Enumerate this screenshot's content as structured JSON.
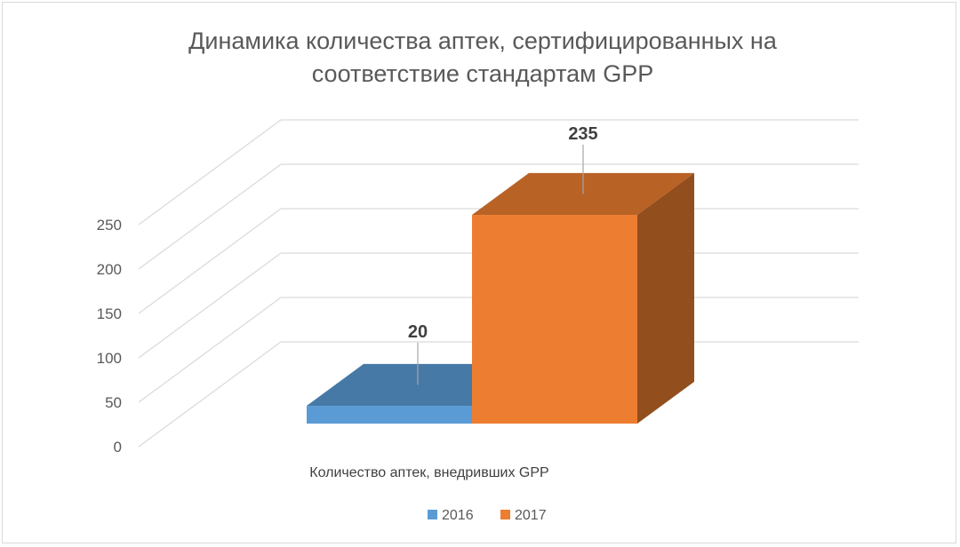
{
  "chart_data": {
    "type": "bar",
    "title": "Динамика количества аптек, сертифицированных на соответствие стандартам GPP",
    "categories": [
      "Количество аптек, внедривших GPP"
    ],
    "series": [
      {
        "name": "2016",
        "values": [
          20
        ],
        "color": "#5b9bd5"
      },
      {
        "name": "2017",
        "values": [
          235
        ],
        "color": "#ed7d31"
      }
    ],
    "ylim": [
      0,
      250
    ],
    "yticks": [
      0,
      50,
      100,
      150,
      200,
      250
    ],
    "grid": true,
    "legend": "bottom",
    "style": "3d-column"
  }
}
